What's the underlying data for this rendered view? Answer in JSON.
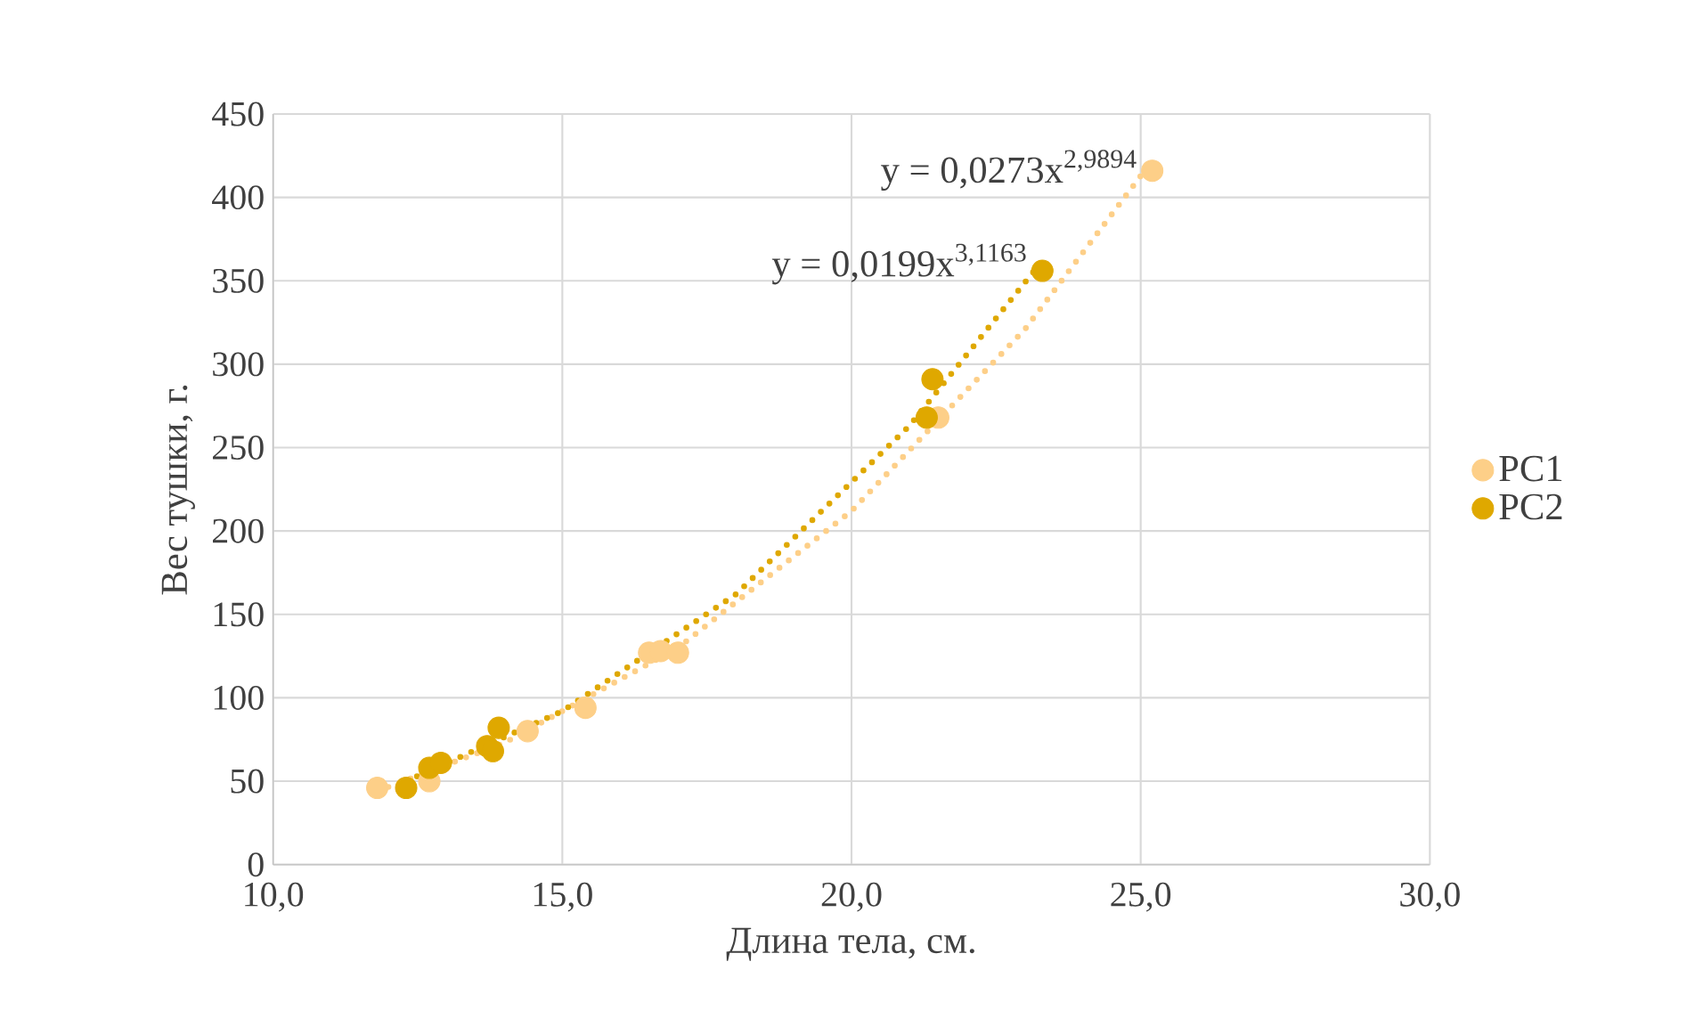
{
  "chart_data": {
    "type": "scatter",
    "xlabel": "Длина тела, см.",
    "ylabel": "Вес тушки, г.",
    "xlim": [
      10,
      30
    ],
    "xticks": [
      {
        "value": 10,
        "label": "10,0"
      },
      {
        "value": 15,
        "label": "15,0"
      },
      {
        "value": 20,
        "label": "20,0"
      },
      {
        "value": 25,
        "label": "25,0"
      },
      {
        "value": 30,
        "label": "30,0"
      }
    ],
    "ylim": [
      0,
      450
    ],
    "yticks": [
      0,
      50,
      100,
      150,
      200,
      250,
      300,
      350,
      400,
      450
    ],
    "grid": true,
    "legend": "right",
    "marker": "circle",
    "series": [
      {
        "name": "PC1",
        "color": "#fdcf88",
        "x": [
          11.8,
          12.7,
          14.4,
          15.4,
          16.5,
          16.7,
          17.0,
          21.5,
          25.2
        ],
        "values": [
          46,
          50,
          80,
          94,
          127,
          128,
          127,
          268,
          416
        ]
      },
      {
        "name": "PC2",
        "color": "#dfa800",
        "x": [
          12.3,
          12.7,
          12.9,
          13.7,
          13.8,
          13.9,
          21.3,
          21.4,
          23.3
        ],
        "values": [
          46,
          58,
          61,
          71,
          68,
          82,
          268,
          291,
          356
        ]
      },
      {
        "type": "line",
        "line_style": "dotted",
        "marker": "none",
        "color": "#fdcf88",
        "x": [
          11.8,
          14,
          17,
          20,
          23,
          25.2
        ],
        "values": [
          44,
          73,
          130,
          212,
          321,
          422
        ]
      },
      {
        "type": "line",
        "line_style": "dotted",
        "marker": "none",
        "color": "#dfa800",
        "x": [
          12.3,
          15,
          18,
          21,
          23.3
        ],
        "values": [
          50,
          92,
          162,
          263,
          362
        ]
      }
    ],
    "annotations": [
      "y = 0,0273x$^{2,9894}$",
      "y = 0,0199x$^{3,1163}$"
    ]
  }
}
